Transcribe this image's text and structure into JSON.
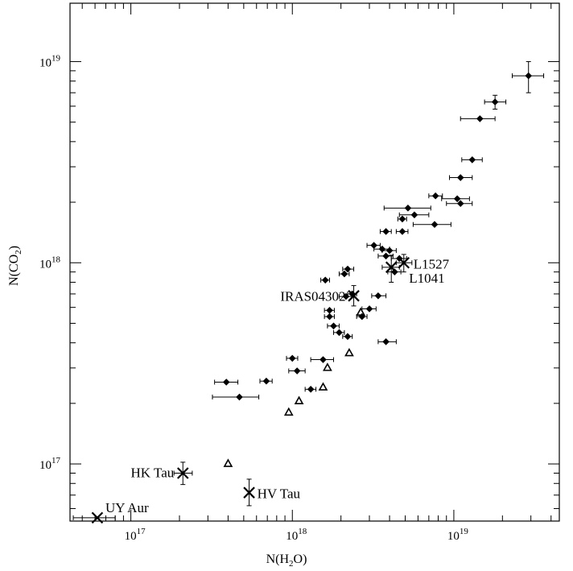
{
  "chart_data": {
    "type": "scatter",
    "title": "",
    "xlabel": {
      "main": "N(H",
      "sub": "2",
      "tail": "O)"
    },
    "ylabel": {
      "main": "N(CO",
      "sub": "2",
      "tail": ")"
    },
    "xscale": "log",
    "yscale": "log",
    "xlim": [
      4.2e+16,
      4.5e+19
    ],
    "ylim": [
      5.2e+16,
      1.95e+19
    ],
    "x_ticks": [
      {
        "value": 1e+17,
        "base": "10",
        "exp": "17"
      },
      {
        "value": 1e+18,
        "base": "10",
        "exp": "18"
      },
      {
        "value": 1e+19,
        "base": "10",
        "exp": "19"
      }
    ],
    "y_ticks": [
      {
        "value": 1e+17,
        "base": "10",
        "exp": "17"
      },
      {
        "value": 1e+18,
        "base": "10",
        "exp": "18"
      },
      {
        "value": 1e+19,
        "base": "10",
        "exp": "19"
      }
    ],
    "grid": false,
    "series": [
      {
        "marker": "diamond",
        "points": [
          {
            "x": 3.9e+17,
            "y": 2.55e+17,
            "xerr": [
              3.3e+17,
              4.6e+17
            ]
          },
          {
            "x": 4.7e+17,
            "y": 2.15e+17,
            "xerr": [
              3.2e+17,
              6.2e+17
            ]
          },
          {
            "x": 6.9e+17,
            "y": 2.58e+17,
            "xerr": [
              6.3e+17,
              7.5e+17
            ]
          },
          {
            "x": 1e+18,
            "y": 3.35e+17,
            "xerr": [
              9.2e+17,
              1.08e+18
            ]
          },
          {
            "x": 1.07e+18,
            "y": 2.9e+17,
            "xerr": [
              9.5e+17,
              1.2e+18
            ]
          },
          {
            "x": 1.3e+18,
            "y": 2.35e+17,
            "xerr": [
              1.2e+18,
              1.4e+18
            ]
          },
          {
            "x": 1.55e+18,
            "y": 3.3e+17,
            "xerr": [
              1.3e+18,
              1.8e+18
            ]
          },
          {
            "x": 1.6e+18,
            "y": 8.2e+17,
            "xerr": [
              1.5e+18,
              1.7e+18
            ]
          },
          {
            "x": 1.7e+18,
            "y": 5.8e+17,
            "xerr": [
              1.58e+18,
              1.82e+18
            ]
          },
          {
            "x": 1.7e+18,
            "y": 5.4e+17,
            "xerr": [
              1.58e+18,
              1.82e+18
            ]
          },
          {
            "x": 1.8e+18,
            "y": 4.85e+17,
            "xerr": [
              1.65e+18,
              1.95e+18
            ]
          },
          {
            "x": 1.95e+18,
            "y": 4.5e+17,
            "xerr": [
              1.8e+18,
              2.1e+18
            ]
          },
          {
            "x": 2.1e+18,
            "y": 8.8e+17,
            "xerr": [
              1.95e+18,
              2.25e+18
            ]
          },
          {
            "x": 2.2e+18,
            "y": 9.3e+17,
            "xerr": [
              2.05e+18,
              2.4e+18
            ]
          },
          {
            "x": 2.2e+18,
            "y": 4.3e+17,
            "xerr": [
              2.05e+18,
              2.35e+18
            ]
          },
          {
            "x": 2.15e+18,
            "y": 6.8e+17,
            "xerr": [
              1.95e+18,
              2.35e+18
            ]
          },
          {
            "x": 2.35e+18,
            "y": 7e+17,
            "xerr": [
              2.2e+18,
              2.5e+18
            ]
          },
          {
            "x": 2.7e+18,
            "y": 5.4e+17,
            "xerr": [
              2.5e+18,
              2.9e+18
            ]
          },
          {
            "x": 3e+18,
            "y": 5.9e+17,
            "xerr": [
              2.7e+18,
              3.3e+18
            ]
          },
          {
            "x": 3.2e+18,
            "y": 1.22e+18,
            "xerr": [
              2.9e+18,
              3.5e+18
            ]
          },
          {
            "x": 3.4e+18,
            "y": 6.85e+17,
            "xerr": [
              3.1e+18,
              3.8e+18
            ]
          },
          {
            "x": 3.6e+18,
            "y": 1.17e+18,
            "xerr": [
              3.2e+18,
              4e+18
            ]
          },
          {
            "x": 3.8e+18,
            "y": 1.43e+18,
            "xerr": [
              3.5e+18,
              4.1e+18
            ]
          },
          {
            "x": 3.8e+18,
            "y": 1.08e+18,
            "xerr": [
              3.4e+18,
              4.2e+18
            ]
          },
          {
            "x": 3.8e+18,
            "y": 4.05e+17,
            "xerr": [
              3.4e+18,
              4.4e+18
            ]
          },
          {
            "x": 4e+18,
            "y": 1.15e+18,
            "xerr": [
              3.6e+18,
              4.4e+18
            ]
          },
          {
            "x": 4.3e+18,
            "y": 9e+17,
            "xerr": [
              3.9e+18,
              4.7e+18
            ]
          },
          {
            "x": 4.6e+18,
            "y": 1.05e+18,
            "xerr": [
              4.1e+18,
              5.1e+18
            ]
          },
          {
            "x": 4.8e+18,
            "y": 1.43e+18,
            "xerr": [
              4.4e+18,
              5.2e+18
            ]
          },
          {
            "x": 4.8e+18,
            "y": 1.65e+18,
            "xerr": [
              4.5e+18,
              5.1e+18
            ]
          },
          {
            "x": 5.2e+18,
            "y": 1.87e+18,
            "xerr": [
              3.7e+18,
              7.2e+18
            ]
          },
          {
            "x": 5.7e+18,
            "y": 1.73e+18,
            "xerr": [
              4.6e+18,
              7e+18
            ]
          },
          {
            "x": 7.6e+18,
            "y": 1.55e+18,
            "xerr": [
              5.6e+18,
              9.6e+18
            ]
          },
          {
            "x": 7.7e+18,
            "y": 2.15e+18,
            "xerr": [
              7e+18,
              8.5e+18
            ]
          },
          {
            "x": 1.05e+19,
            "y": 2.08e+18,
            "xerr": [
              8.4e+18,
              1.25e+19
            ]
          },
          {
            "x": 1.1e+19,
            "y": 1.97e+18,
            "xerr": [
              9e+18,
              1.3e+19
            ]
          },
          {
            "x": 1.1e+19,
            "y": 2.65e+18,
            "xerr": [
              9.4e+18,
              1.3e+19
            ]
          },
          {
            "x": 1.3e+19,
            "y": 3.25e+18,
            "xerr": [
              1.12e+19,
              1.5e+19
            ]
          },
          {
            "x": 1.45e+19,
            "y": 5.2e+18,
            "xerr": [
              1.1e+19,
              1.8e+19
            ]
          },
          {
            "x": 1.8e+19,
            "y": 6.3e+18,
            "xerr": [
              1.55e+19,
              2.1e+19
            ],
            "yerr": [
              5.8e+18,
              6.8e+18
            ]
          },
          {
            "x": 2.9e+19,
            "y": 8.5e+18,
            "xerr": [
              2.3e+19,
              3.6e+19
            ],
            "yerr": [
              7e+18,
              1e+19
            ]
          }
        ]
      },
      {
        "marker": "triangle",
        "points": [
          {
            "x": 9.5e+17,
            "y": 1.8e+17
          },
          {
            "x": 1.1e+18,
            "y": 2.05e+17
          },
          {
            "x": 1.55e+18,
            "y": 2.4e+17
          },
          {
            "x": 1.65e+18,
            "y": 3e+17
          },
          {
            "x": 2.25e+18,
            "y": 3.55e+17
          },
          {
            "x": 2.65e+18,
            "y": 5.65e+17
          },
          {
            "x": 4e+17,
            "y": 1e+17
          }
        ]
      },
      {
        "marker": "cross",
        "points": [
          {
            "x": 6.2e+16,
            "y": 5.4e+16,
            "xerr": [
              4.4e+16,
              8e+16
            ]
          },
          {
            "x": 2.1e+17,
            "y": 9e+16,
            "xerr": [
              1.85e+17,
              2.4e+17
            ],
            "yerr": [
              7.9e+16,
              1.02e+17
            ]
          },
          {
            "x": 5.4e+17,
            "y": 7.2e+16,
            "yerr": [
              6.2e+16,
              8.4e+16
            ]
          },
          {
            "x": 2.4e+18,
            "y": 6.85e+17,
            "yerr": [
              6.1e+17,
              7.7e+17
            ]
          },
          {
            "x": 4.1e+18,
            "y": 9.5e+17,
            "xerr": [
              3.6e+18,
              4.6e+18
            ],
            "yerr": [
              8e+17,
              1.09e+18
            ]
          },
          {
            "x": 4.9e+18,
            "y": 1e+18,
            "xerr": [
              4.4e+18,
              5.5e+18
            ],
            "yerr": [
              9e+17,
              1.1e+18
            ]
          }
        ]
      }
    ],
    "annotations": [
      {
        "text": "UY Aur",
        "x": 6.2e+16,
        "y": 5.4e+16,
        "anchor": "start",
        "dx": 10,
        "dy": -7
      },
      {
        "text": "HK Tau",
        "x": 2.1e+17,
        "y": 9e+16,
        "anchor": "end",
        "dx": -11,
        "dy": 5
      },
      {
        "text": "HV Tau",
        "x": 5.4e+17,
        "y": 7.2e+16,
        "anchor": "start",
        "dx": 10,
        "dy": 7
      },
      {
        "text": "IRAS04302",
        "x": 2.4e+18,
        "y": 6.85e+17,
        "anchor": "end",
        "dx": -10,
        "dy": 6
      },
      {
        "text": "L1527",
        "x": 4.9e+18,
        "y": 1e+18,
        "anchor": "start",
        "dx": 12,
        "dy": 7
      },
      {
        "text": "L1041",
        "x": 4.1e+18,
        "y": 9.5e+17,
        "anchor": "start",
        "dx": 22,
        "dy": 19
      }
    ]
  }
}
